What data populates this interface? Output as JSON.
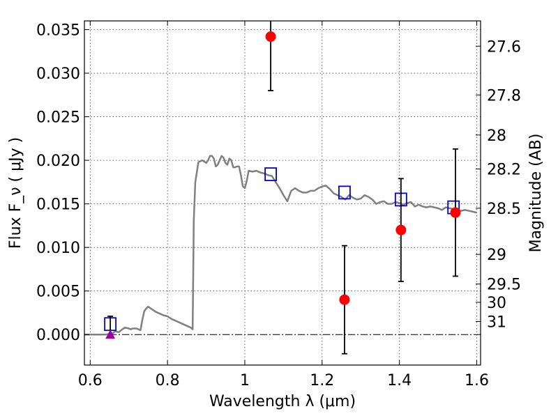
{
  "chart_data": {
    "type": "scatter",
    "xlabel": "Wavelength  λ (μm)",
    "ylabel": "Flux  F_ν  ( μJy )",
    "ylabel_right": "Magnitude (AB)",
    "xlim": [
      0.585,
      1.61
    ],
    "ylim": [
      -0.0035,
      0.036
    ],
    "grid": true,
    "x_ticks": [
      0.6,
      0.8,
      1.0,
      1.2,
      1.4,
      1.6
    ],
    "x_tick_labels": [
      "0.6",
      "0.8",
      "1",
      "1.2",
      "1.4",
      "1.6"
    ],
    "y_ticks": [
      0.0,
      0.005,
      0.01,
      0.015,
      0.02,
      0.025,
      0.03,
      0.035
    ],
    "y_tick_labels": [
      "0.000",
      "0.005",
      "0.010",
      "0.015",
      "0.020",
      "0.025",
      "0.030",
      "0.035"
    ],
    "right_ticks": [
      {
        "flux": 0.0331,
        "label": "27.6"
      },
      {
        "flux": 0.0275,
        "label": "27.8"
      },
      {
        "flux": 0.0229,
        "label": "28"
      },
      {
        "flux": 0.019,
        "label": "28.2"
      },
      {
        "flux": 0.0145,
        "label": "28.5"
      },
      {
        "flux": 0.0092,
        "label": "29"
      },
      {
        "flux": 0.0058,
        "label": "29.5"
      },
      {
        "flux": 0.0037,
        "label": "30"
      },
      {
        "flux": 0.0015,
        "label": "31"
      }
    ],
    "series": [
      {
        "kind": "line",
        "color": "#808080",
        "x": [
          0.585,
          0.6,
          0.62,
          0.64,
          0.655,
          0.66,
          0.665,
          0.67,
          0.675,
          0.68,
          0.69,
          0.7,
          0.705,
          0.71,
          0.72,
          0.73,
          0.735,
          0.74,
          0.745,
          0.75,
          0.76,
          0.77,
          0.78,
          0.79,
          0.8,
          0.81,
          0.82,
          0.83,
          0.84,
          0.85,
          0.86,
          0.865,
          0.868,
          0.872,
          0.88,
          0.89,
          0.9,
          0.905,
          0.91,
          0.915,
          0.92,
          0.925,
          0.93,
          0.94,
          0.945,
          0.95,
          0.955,
          0.96,
          0.965,
          0.97,
          0.975,
          0.98,
          0.985,
          0.99,
          0.995,
          1.0,
          1.005,
          1.01,
          1.02,
          1.03,
          1.04,
          1.05,
          1.06,
          1.07,
          1.08,
          1.09,
          1.1,
          1.11,
          1.12,
          1.13,
          1.14,
          1.15,
          1.16,
          1.17,
          1.18,
          1.19,
          1.2,
          1.21,
          1.22,
          1.23,
          1.24,
          1.25,
          1.26,
          1.27,
          1.28,
          1.29,
          1.3,
          1.31,
          1.32,
          1.33,
          1.34,
          1.35,
          1.36,
          1.37,
          1.38,
          1.39,
          1.4,
          1.41,
          1.42,
          1.43,
          1.44,
          1.45,
          1.46,
          1.47,
          1.48,
          1.49,
          1.5,
          1.51,
          1.52,
          1.53,
          1.54,
          1.55,
          1.56,
          1.57,
          1.58,
          1.59,
          1.6
        ],
        "y": [
          0.0,
          0.0,
          0.0,
          0.0,
          0.0001,
          0.0002,
          0.0004,
          0.0003,
          0.0003,
          0.0005,
          0.0008,
          0.0007,
          0.0006,
          0.0007,
          0.0007,
          0.0005,
          0.0017,
          0.0027,
          0.003,
          0.0032,
          0.0029,
          0.0026,
          0.0024,
          0.0022,
          0.0021,
          0.0018,
          0.0016,
          0.0014,
          0.0012,
          0.001,
          0.0008,
          0.0006,
          0.013,
          0.0175,
          0.0198,
          0.02,
          0.0197,
          0.02,
          0.0205,
          0.0205,
          0.0202,
          0.0193,
          0.0195,
          0.0205,
          0.0203,
          0.0197,
          0.0195,
          0.0202,
          0.02,
          0.0192,
          0.0192,
          0.0193,
          0.0193,
          0.0183,
          0.017,
          0.0168,
          0.0176,
          0.0188,
          0.0187,
          0.0188,
          0.0186,
          0.0185,
          0.0183,
          0.0182,
          0.0175,
          0.0168,
          0.016,
          0.0153,
          0.0165,
          0.0168,
          0.0165,
          0.0163,
          0.0163,
          0.0165,
          0.0165,
          0.0168,
          0.017,
          0.0171,
          0.0167,
          0.0162,
          0.016,
          0.0158,
          0.0155,
          0.016,
          0.0157,
          0.0155,
          0.0156,
          0.016,
          0.0158,
          0.0155,
          0.015,
          0.0152,
          0.0153,
          0.015,
          0.015,
          0.0152,
          0.0151,
          0.0149,
          0.0151,
          0.0152,
          0.0147,
          0.0149,
          0.0147,
          0.0146,
          0.0147,
          0.0146,
          0.0145,
          0.0143,
          0.0146,
          0.0145,
          0.0144,
          0.0143,
          0.0142,
          0.0143,
          0.0142,
          0.0141,
          0.014
        ]
      },
      {
        "kind": "model_photometry",
        "color": "#0000cc",
        "x": [
          0.652,
          1.067,
          1.258,
          1.404,
          1.54
        ],
        "y": [
          0.0012,
          0.0184,
          0.0163,
          0.0155,
          0.0146
        ]
      },
      {
        "kind": "observed",
        "color": "#ff0000",
        "x": [
          1.067,
          1.258,
          1.404,
          1.545
        ],
        "y": [
          0.0342,
          0.004,
          0.012,
          0.014
        ],
        "yerr": [
          0.0062,
          0.0062,
          0.0059,
          0.0073
        ]
      },
      {
        "kind": "upper_limit",
        "color": "#990099",
        "x": [
          0.652
        ],
        "y": [
          0.0
        ],
        "yerr": [
          0.0021
        ]
      }
    ]
  }
}
